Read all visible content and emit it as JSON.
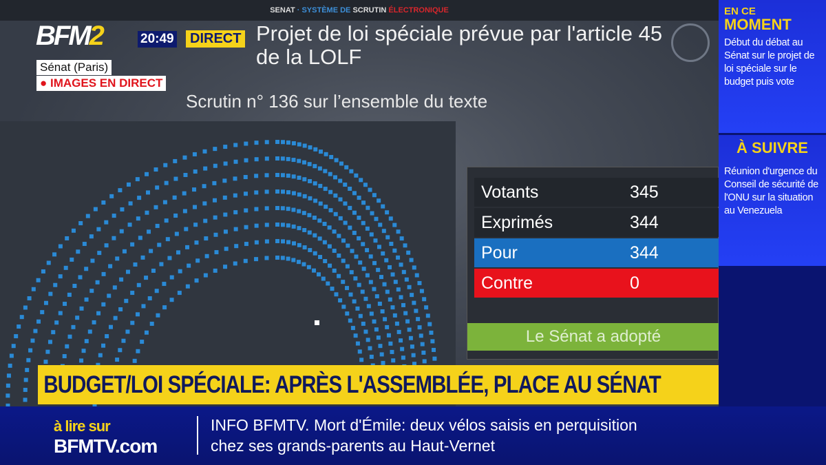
{
  "screen": {
    "header_parts": [
      "SENAT",
      "·",
      "SYSTÈME DE",
      "SCRUTIN",
      "ÉLECTRONIQUE"
    ],
    "title": "Projet de loi spéciale prévue par l'article 45 de la LOLF",
    "scrutin": "Scrutin n° 136 sur l’ensemble du texte"
  },
  "results": [
    {
      "label": "Votants",
      "value": "345"
    },
    {
      "label": "Exprimés",
      "value": "344"
    },
    {
      "label": "Pour",
      "value": "344"
    },
    {
      "label": "Contre",
      "value": "0"
    }
  ],
  "outcome": "Le Sénat a adopté",
  "channel": {
    "logo": "BFM2",
    "time": "20:49",
    "direct": "DIRECT",
    "location": "Sénat (Paris)",
    "live": "● IMAGES EN DIRECT"
  },
  "banner": "BUDGET/LOI SPÉCIALE: APRÈS L'ASSEMBLÉE, PLACE AU SÉNAT",
  "ticker": {
    "promo_top": "à lire sur",
    "promo_bottom": "BFMTV.com",
    "line1": "INFO BFMTV. Mort d'Émile: deux vélos saisis en perquisition",
    "line2": "chez ses grands-parents au Haut-Vernet"
  },
  "sidebar": {
    "now_small": "EN CE",
    "now_big": "MOMENT",
    "now_text": "Début du débat au Sénat sur le projet de loi spéciale sur le budget puis vote",
    "next_big": "À SUIVRE",
    "next_text": "Réunion d'urgence du Conseil de sécurité de l'ONU sur la situation au Venezuela"
  },
  "colors": {
    "pour": "#1a6fc0",
    "contre": "#e8121c",
    "adopte": "#7cb33b",
    "seat": "#2a8ad6",
    "banner": "#f5d21a"
  }
}
